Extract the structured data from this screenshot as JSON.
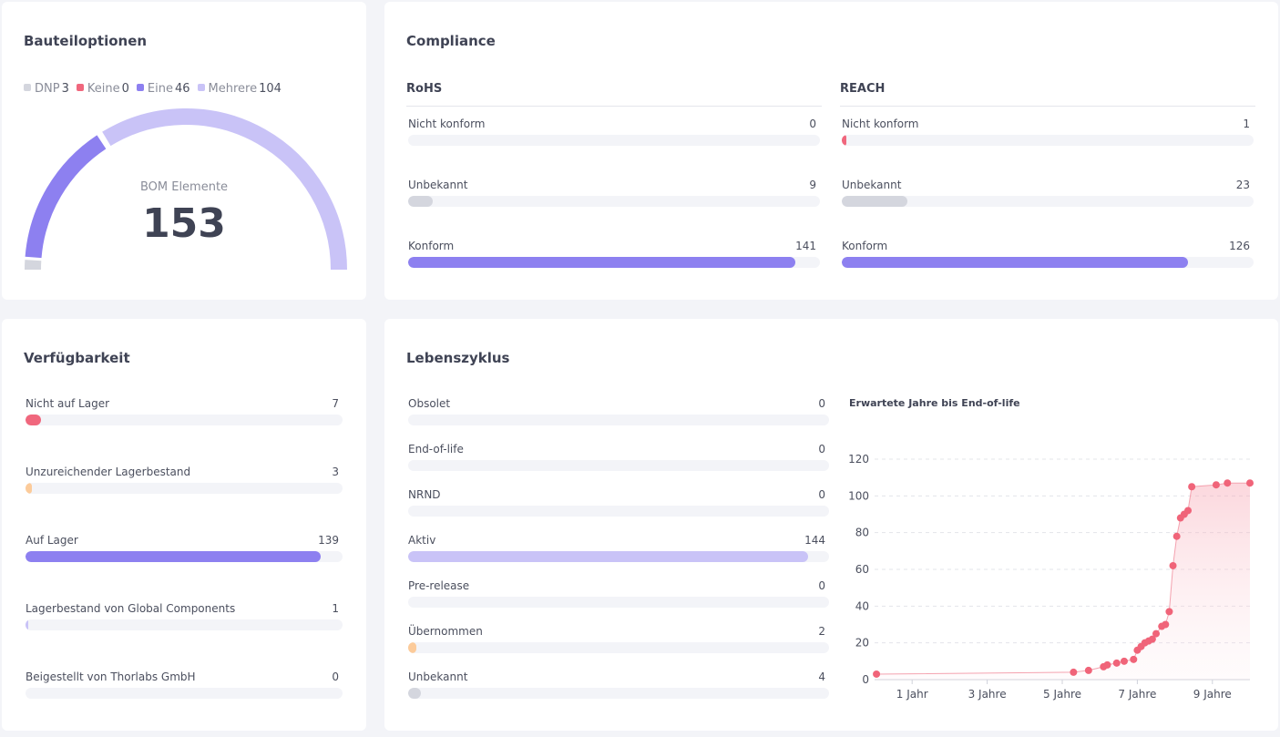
{
  "colors": {
    "dnp": "#d4d6de",
    "keine": "#f0677d",
    "eine": "#8d80f0",
    "mehrere": "#c9c3f7",
    "grey_bar": "#d4d6de",
    "orange_bar": "#fccb9a",
    "light_purple": "#c9c3f7",
    "purple": "#8d80f0",
    "red": "#f0677d",
    "point": "#f06479"
  },
  "parts": {
    "title": "Bauteiloptionen",
    "legend": [
      {
        "name": "DNP",
        "count": "3",
        "color": "#d4d6de"
      },
      {
        "name": "Keine",
        "count": "0",
        "color": "#f0677d"
      },
      {
        "name": "Eine",
        "count": "46",
        "color": "#8d80f0"
      },
      {
        "name": "Mehrere",
        "count": "104",
        "color": "#c9c3f7"
      }
    ],
    "gauge_label": "BOM Elemente",
    "gauge_value": "153",
    "gauge_segments": [
      3,
      0,
      46,
      104
    ]
  },
  "compliance": {
    "title": "Compliance",
    "rohs": {
      "title": "RoHS",
      "rows": [
        {
          "label": "Nicht konform",
          "value": "0",
          "fraction": 0.0,
          "color": "#f0677d"
        },
        {
          "label": "Unbekannt",
          "value": "9",
          "fraction": 0.059,
          "color": "#d4d6de"
        },
        {
          "label": "Konform",
          "value": "141",
          "fraction": 0.94,
          "color": "#8d80f0"
        }
      ]
    },
    "reach": {
      "title": "REACH",
      "rows": [
        {
          "label": "Nicht konform",
          "value": "1",
          "fraction": 0.011,
          "color": "#f0677d"
        },
        {
          "label": "Unbekannt",
          "value": "23",
          "fraction": 0.16,
          "color": "#d4d6de"
        },
        {
          "label": "Konform",
          "value": "126",
          "fraction": 0.84,
          "color": "#8d80f0"
        }
      ]
    }
  },
  "availability": {
    "title": "Verfügbarkeit",
    "rows": [
      {
        "label": "Nicht auf Lager",
        "value": "7",
        "fraction": 0.048,
        "color": "#f0677d"
      },
      {
        "label": "Unzureichender Lagerbestand",
        "value": "3",
        "fraction": 0.02,
        "color": "#fccb9a"
      },
      {
        "label": "Auf Lager",
        "value": "139",
        "fraction": 0.93,
        "color": "#8d80f0"
      },
      {
        "label": "Lagerbestand von Global Components",
        "value": "1",
        "fraction": 0.008,
        "color": "#c9c3f7"
      },
      {
        "label": "Beigestellt von Thorlabs GmbH",
        "value": "0",
        "fraction": 0.0,
        "color": "#d4d6de"
      }
    ]
  },
  "lifecycle": {
    "title": "Lebenszyklus",
    "rows": [
      {
        "label": "Obsolet",
        "value": "0",
        "fraction": 0.0,
        "color": "#f0677d"
      },
      {
        "label": "End-of-life",
        "value": "0",
        "fraction": 0.0,
        "color": "#f0677d"
      },
      {
        "label": "NRND",
        "value": "0",
        "fraction": 0.0,
        "color": "#fccb9a"
      },
      {
        "label": "Aktiv",
        "value": "144",
        "fraction": 0.95,
        "color": "#c9c3f7"
      },
      {
        "label": "Pre-release",
        "value": "0",
        "fraction": 0.0,
        "color": "#8d80f0"
      },
      {
        "label": "Übernommen",
        "value": "2",
        "fraction": 0.02,
        "color": "#fccb9a"
      },
      {
        "label": "Unbekannt",
        "value": "4",
        "fraction": 0.03,
        "color": "#d4d6de"
      }
    ]
  },
  "chart_data": {
    "type": "area",
    "title": "Erwartete Jahre bis End-of-life",
    "xlabel": "",
    "ylabel": "",
    "x_ticks": [
      "1 Jahr",
      "3 Jahre",
      "5 Jahre",
      "7 Jahre",
      "9 Jahre"
    ],
    "x_tick_values": [
      1,
      3,
      5,
      7,
      9
    ],
    "xlim": [
      0,
      10
    ],
    "ylim": [
      0,
      120
    ],
    "y_ticks": [
      0,
      20,
      40,
      60,
      80,
      100,
      120
    ],
    "grid": true,
    "points": [
      [
        0.05,
        3
      ],
      [
        5.3,
        4
      ],
      [
        5.7,
        5
      ],
      [
        6.1,
        7
      ],
      [
        6.2,
        8
      ],
      [
        6.45,
        9
      ],
      [
        6.65,
        10
      ],
      [
        6.9,
        11
      ],
      [
        7.0,
        16
      ],
      [
        7.1,
        18
      ],
      [
        7.2,
        20
      ],
      [
        7.3,
        21
      ],
      [
        7.4,
        22
      ],
      [
        7.5,
        25
      ],
      [
        7.65,
        29
      ],
      [
        7.75,
        30
      ],
      [
        7.85,
        37
      ],
      [
        7.95,
        62
      ],
      [
        8.05,
        78
      ],
      [
        8.15,
        88
      ],
      [
        8.25,
        90
      ],
      [
        8.35,
        92
      ],
      [
        8.45,
        105
      ],
      [
        9.1,
        106
      ],
      [
        9.4,
        107
      ],
      [
        10.0,
        107
      ]
    ]
  }
}
